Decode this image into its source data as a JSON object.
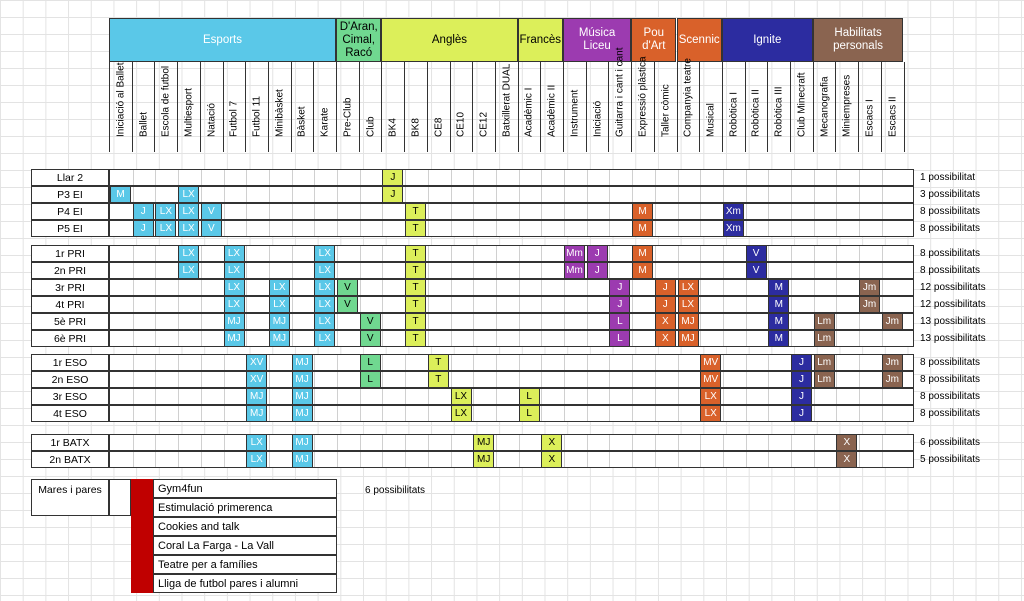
{
  "categories": [
    {
      "label": "Esports",
      "color": "#5ac8e8",
      "span": 10
    },
    {
      "label": "D'Aran,\nCimal,\nRacó",
      "color": "#70d890",
      "span": 2
    },
    {
      "label": "Anglès",
      "color": "#dcef5a",
      "span": 6
    },
    {
      "label": "Francès",
      "color": "#dcef5a",
      "span": 2
    },
    {
      "label": "Música Liceu",
      "color": "#9c3bb0",
      "span": 3
    },
    {
      "label": "Pou d'Art",
      "color": "#d9612a",
      "span": 2
    },
    {
      "label": "Scennic",
      "color": "#d9612a",
      "span": 2
    },
    {
      "label": "Ignite",
      "color": "#2c2ca0",
      "span": 4
    },
    {
      "label": "Habilitats\npersonals",
      "color": "#8a6450",
      "span": 4
    }
  ],
  "columns": [
    "Iniciació al Ballet",
    "Ballet",
    "Escola de futbol",
    "Multiesport",
    "Natació",
    "Futbol 7",
    "Futbol 11",
    "Minibàsket",
    "Bàsket",
    "Karate",
    "Pre-Club",
    "Club",
    "BK4",
    "BK8",
    "CE8",
    "CE10",
    "CE12",
    "Batxillerat DUAL",
    "Acadèmic I",
    "Acadèmic II",
    "Instrument",
    "Iniciació",
    "Guitarra i cant i cant",
    "Expressió plàstica",
    "Taller còmic",
    "Companyia teatre",
    "Musical",
    "Robòtica I",
    "Robòtica II",
    "Robòtica III",
    "Club Minecraft",
    "Mecanografia",
    "Miniempreses",
    "Escacs I",
    "Escacs II"
  ],
  "groups": [
    {
      "rows": [
        {
          "label": "Llar 2",
          "total": "1 possibilitat",
          "cells": [
            [
              12,
              "J"
            ]
          ]
        },
        {
          "label": "P3 EI",
          "total": "3 possibilitats",
          "cells": [
            [
              0,
              "M"
            ],
            [
              3,
              "LX"
            ],
            [
              12,
              "J"
            ]
          ]
        },
        {
          "label": "P4 EI",
          "total": "8 possibilitats",
          "cells": [
            [
              1,
              "J"
            ],
            [
              2,
              "LX"
            ],
            [
              3,
              "LX"
            ],
            [
              4,
              "V"
            ],
            [
              13,
              "T"
            ],
            [
              23,
              "M"
            ],
            [
              27,
              "Xm"
            ]
          ]
        },
        {
          "label": "P5 EI",
          "total": "8 possibilitats",
          "cells": [
            [
              1,
              "J"
            ],
            [
              2,
              "LX"
            ],
            [
              3,
              "LX"
            ],
            [
              4,
              "V"
            ],
            [
              13,
              "T"
            ],
            [
              23,
              "M"
            ],
            [
              27,
              "Xm"
            ]
          ]
        }
      ]
    },
    {
      "rows": [
        {
          "label": "1r PRI",
          "total": "8 possibilitats",
          "cells": [
            [
              3,
              "LX"
            ],
            [
              5,
              "LX"
            ],
            [
              9,
              "LX"
            ],
            [
              13,
              "T"
            ],
            [
              20,
              "Mm"
            ],
            [
              21,
              "J"
            ],
            [
              23,
              "M"
            ],
            [
              28,
              "V"
            ]
          ]
        },
        {
          "label": "2n PRI",
          "total": "8 possibilitats",
          "cells": [
            [
              3,
              "LX"
            ],
            [
              5,
              "LX"
            ],
            [
              9,
              "LX"
            ],
            [
              13,
              "T"
            ],
            [
              20,
              "Mm"
            ],
            [
              21,
              "J"
            ],
            [
              23,
              "M"
            ],
            [
              28,
              "V"
            ]
          ]
        },
        {
          "label": "3r PRI",
          "total": "12 possibilitats",
          "cells": [
            [
              5,
              "LX"
            ],
            [
              7,
              "LX"
            ],
            [
              9,
              "LX"
            ],
            [
              10,
              "V"
            ],
            [
              13,
              "T"
            ],
            [
              22,
              "J"
            ],
            [
              24,
              "J"
            ],
            [
              25,
              "LX"
            ],
            [
              29,
              "M"
            ],
            [
              33,
              "Jm"
            ]
          ]
        },
        {
          "label": "4t PRI",
          "total": "12 possibilitats",
          "cells": [
            [
              5,
              "LX"
            ],
            [
              7,
              "LX"
            ],
            [
              9,
              "LX"
            ],
            [
              10,
              "V"
            ],
            [
              13,
              "T"
            ],
            [
              22,
              "J"
            ],
            [
              24,
              "J"
            ],
            [
              25,
              "LX"
            ],
            [
              29,
              "M"
            ],
            [
              33,
              "Jm"
            ]
          ]
        },
        {
          "label": "5è PRI",
          "total": "13 possibilitats",
          "cells": [
            [
              5,
              "MJ"
            ],
            [
              7,
              "MJ"
            ],
            [
              9,
              "LX"
            ],
            [
              11,
              "V"
            ],
            [
              13,
              "T"
            ],
            [
              22,
              "L"
            ],
            [
              24,
              "X"
            ],
            [
              25,
              "MJ"
            ],
            [
              29,
              "M"
            ],
            [
              31,
              "Lm"
            ],
            [
              34,
              "Jm"
            ]
          ]
        },
        {
          "label": "6è PRI",
          "total": "13 possibilitats",
          "cells": [
            [
              5,
              "MJ"
            ],
            [
              7,
              "MJ"
            ],
            [
              9,
              "LX"
            ],
            [
              11,
              "V"
            ],
            [
              13,
              "T"
            ],
            [
              22,
              "L"
            ],
            [
              24,
              "X"
            ],
            [
              25,
              "MJ"
            ],
            [
              29,
              "M"
            ],
            [
              31,
              "Lm"
            ]
          ]
        }
      ]
    },
    {
      "rows": [
        {
          "label": "1r ESO",
          "total": "8 possibilitats",
          "cells": [
            [
              6,
              "XV"
            ],
            [
              8,
              "MJ"
            ],
            [
              11,
              "L"
            ],
            [
              14,
              "T"
            ],
            [
              26,
              "MV"
            ],
            [
              30,
              "J"
            ],
            [
              31,
              "Lm"
            ],
            [
              34,
              "Jm"
            ]
          ]
        },
        {
          "label": "2n ESO",
          "total": "8 possibilitats",
          "cells": [
            [
              6,
              "XV"
            ],
            [
              8,
              "MJ"
            ],
            [
              11,
              "L"
            ],
            [
              14,
              "T"
            ],
            [
              26,
              "MV"
            ],
            [
              30,
              "J"
            ],
            [
              31,
              "Lm"
            ],
            [
              34,
              "Jm"
            ]
          ]
        },
        {
          "label": "3r ESO",
          "total": "8 possibilitats",
          "cells": [
            [
              6,
              "MJ"
            ],
            [
              8,
              "MJ"
            ],
            [
              15,
              "LX"
            ],
            [
              18,
              "L"
            ],
            [
              26,
              "LX"
            ],
            [
              30,
              "J"
            ]
          ]
        },
        {
          "label": "4t ESO",
          "total": "8 possibilitats",
          "cells": [
            [
              6,
              "MJ"
            ],
            [
              8,
              "MJ"
            ],
            [
              15,
              "LX"
            ],
            [
              18,
              "L"
            ],
            [
              26,
              "LX"
            ],
            [
              30,
              "J"
            ]
          ]
        }
      ]
    },
    {
      "rows": [
        {
          "label": "1r BATX",
          "total": "6 possibilitats",
          "cells": [
            [
              6,
              "LX"
            ],
            [
              8,
              "MJ"
            ],
            [
              16,
              "MJ"
            ],
            [
              19,
              "X"
            ],
            [
              32,
              "X"
            ]
          ]
        },
        {
          "label": "2n BATX",
          "total": "5 possibilitats",
          "cells": [
            [
              6,
              "LX"
            ],
            [
              8,
              "MJ"
            ],
            [
              16,
              "MJ"
            ],
            [
              19,
              "X"
            ],
            [
              32,
              "X"
            ]
          ]
        }
      ]
    }
  ],
  "parents": {
    "label": "Mares i pares",
    "total": "6 possibilitats",
    "color": "#c00000",
    "activities": [
      "Gym4fun",
      "Estimulació primerenca",
      "Cookies and talk",
      "Coral La Farga - La Vall",
      "Teatre per a famílies",
      "Lliga de futbol pares i alumni"
    ]
  }
}
